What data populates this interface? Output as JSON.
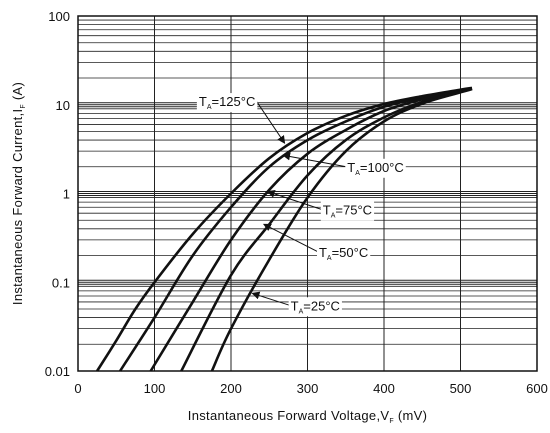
{
  "chart_data": {
    "type": "line",
    "xlabel": {
      "main": "Instantaneous Forward Voltage,V",
      "sub": "F",
      "unit": " (mV)"
    },
    "ylabel": {
      "main": "Instantaneous Forward Current,I",
      "sub": "F",
      "unit": " (A)"
    },
    "x_ticks": [
      0,
      100,
      200,
      300,
      400,
      500,
      600
    ],
    "y_ticks": [
      0.01,
      0.1,
      1,
      10,
      100
    ],
    "y_tick_labels": [
      "0.01",
      "0.1",
      "1",
      "10",
      "100"
    ],
    "xlim": [
      0,
      600
    ],
    "ylim": [
      0.01,
      100
    ],
    "y_scale": "log",
    "grid": true,
    "series": [
      {
        "name": "125°C",
        "label_main": "T",
        "label_sub": "A",
        "label_rest": "=125°C",
        "x": [
          25,
          50,
          75,
          100,
          150,
          200,
          250,
          300,
          350,
          400,
          450,
          500,
          515
        ],
        "y": [
          0.01,
          0.022,
          0.05,
          0.1,
          0.35,
          1.0,
          2.5,
          4.8,
          7.5,
          10.2,
          12.5,
          14.8,
          15.5
        ]
      },
      {
        "name": "100°C",
        "label_main": "T",
        "label_sub": "A",
        "label_rest": "=100°C",
        "x": [
          55,
          100,
          150,
          200,
          250,
          300,
          350,
          400,
          450,
          500,
          515
        ],
        "y": [
          0.01,
          0.04,
          0.2,
          0.7,
          2.0,
          4.0,
          6.5,
          9.5,
          12.0,
          14.5,
          15.3
        ]
      },
      {
        "name": "75°C",
        "label_main": "T",
        "label_sub": "A",
        "label_rest": "=75°C",
        "x": [
          95,
          150,
          200,
          250,
          300,
          350,
          400,
          450,
          500,
          515
        ],
        "y": [
          0.01,
          0.06,
          0.3,
          1.1,
          2.8,
          5.2,
          8.5,
          11.5,
          14.3,
          15.2
        ]
      },
      {
        "name": "50°C",
        "label_main": "T",
        "label_sub": "A",
        "label_rest": "=50°C",
        "x": [
          135,
          200,
          250,
          300,
          350,
          400,
          450,
          500,
          515
        ],
        "y": [
          0.01,
          0.12,
          0.45,
          1.6,
          4.0,
          7.2,
          10.8,
          14.0,
          15.1
        ]
      },
      {
        "name": "25°C",
        "label_main": "T",
        "label_sub": "A",
        "label_rest": "=25°C",
        "x": [
          175,
          200,
          250,
          300,
          350,
          400,
          450,
          500,
          515
        ],
        "y": [
          0.01,
          0.03,
          0.18,
          0.9,
          3.0,
          6.5,
          10.3,
          13.8,
          15.0
        ]
      }
    ],
    "annotations": [
      {
        "series": "125°C",
        "label_x": 158,
        "label_y": 11.0,
        "arrow_x": 270,
        "arrow_y": 3.7
      },
      {
        "series": "100°C",
        "label_x": 352,
        "label_y": 2.0,
        "arrow_x": 268,
        "arrow_y": 2.7
      },
      {
        "series": "75°C",
        "label_x": 320,
        "label_y": 0.66,
        "arrow_x": 248,
        "arrow_y": 1.05
      },
      {
        "series": "50°C",
        "label_x": 315,
        "label_y": 0.22,
        "arrow_x": 243,
        "arrow_y": 0.45
      },
      {
        "series": "25°C",
        "label_x": 278,
        "label_y": 0.055,
        "arrow_x": 228,
        "arrow_y": 0.075
      }
    ]
  }
}
